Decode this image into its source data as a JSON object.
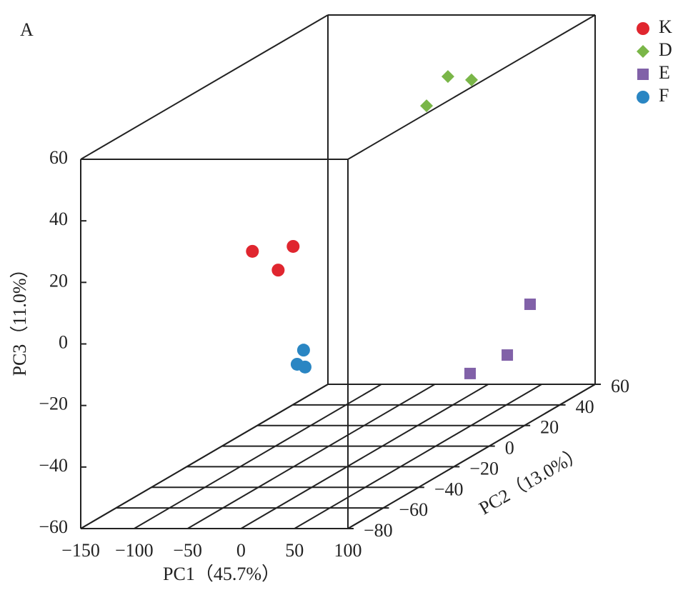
{
  "chart_data": {
    "type": "scatter3d",
    "panel_label": "A",
    "xlabel": "PC1（45.7%）",
    "ylabel": "PC2（13.0%）",
    "zlabel": "PC3（11.0%）",
    "xlim": [
      -150,
      100
    ],
    "ylim": [
      -80,
      60
    ],
    "zlim": [
      -60,
      60
    ],
    "xticks": [
      {
        "value": -150,
        "label": "−150"
      },
      {
        "value": -100,
        "label": "−100"
      },
      {
        "value": -50,
        "label": "−50"
      },
      0,
      50,
      100
    ],
    "yticks": [
      {
        "value": -80,
        "label": "−80"
      },
      {
        "value": -60,
        "label": "−60"
      },
      {
        "value": -40,
        "label": "−40"
      },
      {
        "value": -20,
        "label": "−20"
      },
      0,
      20,
      40,
      60
    ],
    "zticks": [
      {
        "value": -60,
        "label": "−60"
      },
      {
        "value": -40,
        "label": "−40"
      },
      {
        "value": -20,
        "label": "−20"
      },
      0,
      20,
      40,
      60
    ],
    "series": [
      {
        "name": "K",
        "color": "#e0262f",
        "marker": "circle",
        "x": [
          -88.5,
          -64.4,
          -50.4
        ],
        "y": [
          -20,
          -20,
          -20
        ],
        "z": [
          10,
          3.9,
          11.6
        ]
      },
      {
        "name": "D",
        "color": "#7ab648",
        "marker": "diamond",
        "x": [
          -24.7,
          -4.7,
          17.4
        ],
        "y": [
          40,
          40,
          40
        ],
        "z": [
          37.2,
          46.7,
          45.6
        ]
      },
      {
        "name": "E",
        "color": "#8161a8",
        "marker": "square",
        "x": [
          49.1,
          83.9,
          72.2
        ],
        "y": [
          20,
          20,
          40
        ],
        "z": [
          -43.1,
          -37.1,
          -27.3
        ]
      },
      {
        "name": "F",
        "color": "#2a86c3",
        "marker": "circle",
        "x": [
          -7.6,
          -13.6,
          -6.2
        ],
        "y": [
          -40,
          -40,
          -40
        ],
        "z": [
          -15.4,
          -20,
          -20.9
        ]
      }
    ]
  }
}
